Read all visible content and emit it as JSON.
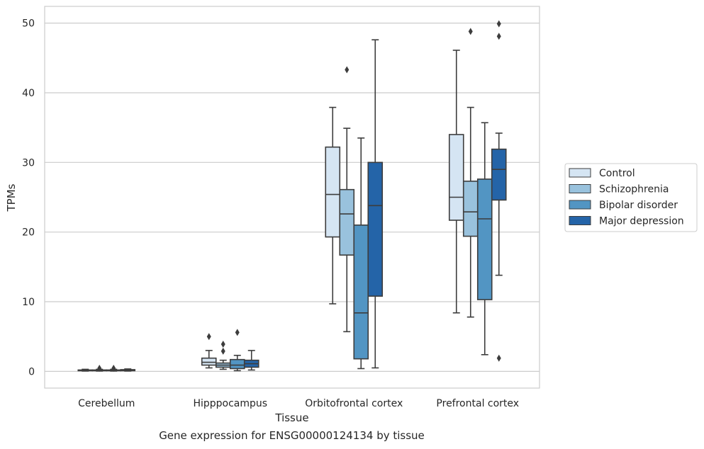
{
  "caption": "Gene expression for ENSG00000124134 by tissue",
  "chart_data": {
    "type": "box",
    "title": "",
    "xlabel": "Tissue",
    "ylabel": "TPMs",
    "ylim": [
      -2.4,
      52.4
    ],
    "yticks": [
      0,
      10,
      20,
      30,
      40,
      50
    ],
    "grid": "horizontal",
    "legend_position": "right",
    "categories": [
      "Cerebellum",
      "Hipppocampus",
      "Orbitofrontal cortex",
      "Prefrontal cortex"
    ],
    "series": [
      {
        "name": "Control",
        "color": "#d5e5f3",
        "boxes": [
          {
            "whislo": 0.05,
            "q1": 0.1,
            "med": 0.15,
            "q3": 0.2,
            "whishi": 0.3,
            "fliers": []
          },
          {
            "whislo": 0.5,
            "q1": 0.9,
            "med": 1.3,
            "q3": 1.9,
            "whishi": 3.0,
            "fliers": [
              5.0
            ]
          },
          {
            "whislo": 9.7,
            "q1": 19.3,
            "med": 25.4,
            "q3": 32.2,
            "whishi": 37.9,
            "fliers": []
          },
          {
            "whislo": 8.4,
            "q1": 21.7,
            "med": 25.0,
            "q3": 34.0,
            "whishi": 46.1,
            "fliers": []
          }
        ]
      },
      {
        "name": "Schizophrenia",
        "color": "#99c2dd",
        "boxes": [
          {
            "whislo": 0.05,
            "q1": 0.1,
            "med": 0.15,
            "q3": 0.2,
            "whishi": 0.3,
            "fliers": [
              0.45
            ]
          },
          {
            "whislo": 0.3,
            "q1": 0.6,
            "med": 0.9,
            "q3": 1.2,
            "whishi": 1.6,
            "fliers": [
              2.9,
              3.9
            ]
          },
          {
            "whislo": 5.7,
            "q1": 16.7,
            "med": 22.6,
            "q3": 26.1,
            "whishi": 34.9,
            "fliers": [
              43.3
            ]
          },
          {
            "whislo": 7.8,
            "q1": 19.4,
            "med": 22.9,
            "q3": 27.3,
            "whishi": 37.9,
            "fliers": [
              48.8
            ]
          }
        ]
      },
      {
        "name": "Bipolar disorder",
        "color": "#5295c3",
        "boxes": [
          {
            "whislo": 0.05,
            "q1": 0.1,
            "med": 0.15,
            "q3": 0.2,
            "whishi": 0.3,
            "fliers": [
              0.45
            ]
          },
          {
            "whislo": 0.1,
            "q1": 0.4,
            "med": 0.9,
            "q3": 1.7,
            "whishi": 2.3,
            "fliers": [
              5.6
            ]
          },
          {
            "whislo": 0.4,
            "q1": 1.8,
            "med": 8.4,
            "q3": 21.0,
            "whishi": 33.5,
            "fliers": []
          },
          {
            "whislo": 2.4,
            "q1": 10.3,
            "med": 21.9,
            "q3": 27.6,
            "whishi": 35.7,
            "fliers": []
          }
        ]
      },
      {
        "name": "Major depression",
        "color": "#2464a8",
        "boxes": [
          {
            "whislo": 0.05,
            "q1": 0.1,
            "med": 0.15,
            "q3": 0.25,
            "whishi": 0.35,
            "fliers": []
          },
          {
            "whislo": 0.2,
            "q1": 0.6,
            "med": 1.1,
            "q3": 1.6,
            "whishi": 3.0,
            "fliers": []
          },
          {
            "whislo": 0.5,
            "q1": 10.8,
            "med": 23.8,
            "q3": 30.0,
            "whishi": 47.6,
            "fliers": []
          },
          {
            "whislo": 13.8,
            "q1": 24.6,
            "med": 29.0,
            "q3": 31.9,
            "whishi": 34.2,
            "fliers": [
              1.9,
              48.1,
              49.9
            ]
          }
        ]
      }
    ]
  }
}
